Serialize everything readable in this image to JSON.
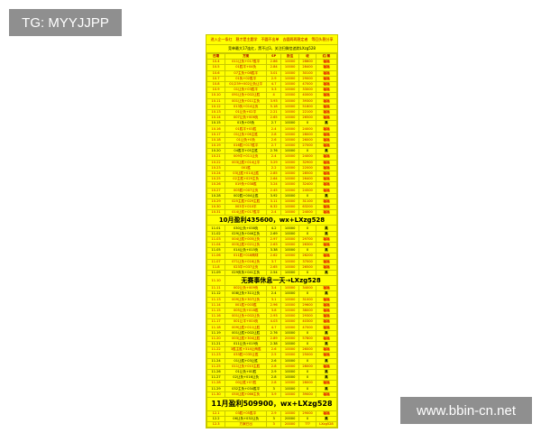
{
  "watermarks": {
    "top_left": "TG: MYYJJPP",
    "bottom_right": "www.bbin-cn.net"
  },
  "sheet": {
    "title": "进入企一条红　稳才是主题学　不圆不出单　去圆两两稳定者　等回头稳分享",
    "subtitle": "竞单最大17连红，黑不过3，关注扫微信追踪LXzg528",
    "headers": [
      "日期",
      "方案",
      "SP",
      "投注",
      "收",
      "红/黑"
    ],
    "labels": {
      "red": "福福",
      "black": "黑"
    },
    "october": [
      [
        "10.4",
        "011让负+017胜平",
        "2.86",
        "10000",
        "28600",
        "red"
      ],
      [
        "10.5",
        "01胜平+04负",
        "2.84",
        "10000",
        "28400",
        "red"
      ],
      [
        "10.6",
        "07主负+08胜平",
        "3.01",
        "10000",
        "30100",
        "red"
      ],
      [
        "10.7",
        "01负+02胜平",
        "2.9",
        "10000",
        "29000",
        "red"
      ],
      [
        "10.8",
        "01/239+002让负让平",
        "4.7",
        "10000",
        "47000",
        "red"
      ],
      [
        "10.9",
        "01让负+03胜平",
        "3.3",
        "10000",
        "33000",
        "red"
      ],
      [
        "10.10",
        "091让负+002让胜",
        "4",
        "10000",
        "40000",
        "red"
      ],
      [
        "10.11",
        "001让负+011主负",
        "3.93",
        "10000",
        "39300",
        "red"
      ],
      [
        "10.12",
        "013负+014让负",
        "5.18",
        "10000",
        "51800",
        "red"
      ],
      [
        "10.13",
        "01让负+02平",
        "2.21",
        "10000",
        "22100",
        "red"
      ],
      [
        "10.14",
        "007让负+006负",
        "2.65",
        "10000",
        "26500",
        "red"
      ],
      [
        "10.15",
        "01负+05负",
        "2.7",
        "10000",
        "0",
        "black"
      ],
      [
        "10.16",
        "01胜平+03胜",
        "2.4",
        "10000",
        "24000",
        "red"
      ],
      [
        "10.17",
        "01让负+06主胜",
        "2.8",
        "10000",
        "28000",
        "red"
      ],
      [
        "10.18",
        "01让负+0负",
        "2.6",
        "10000",
        "26000",
        "red"
      ],
      [
        "10.19",
        "016胜+017胜平",
        "2.7",
        "10000",
        "27000",
        "red"
      ],
      [
        "10.20",
        "04胜平+05主胜",
        "2.76",
        "10000",
        "0",
        "black"
      ],
      [
        "10.21",
        "009平+011让负",
        "2.4",
        "10000",
        "24000",
        "red"
      ],
      [
        "10.22",
        "003让胜+014让平",
        "3.29",
        "10000",
        "32900",
        "red"
      ],
      [
        "10.23",
        "001胜",
        "2.2",
        "10000",
        "22000",
        "red"
      ],
      [
        "10.24",
        "03让胜+014让胜",
        "2.85",
        "10000",
        "28500",
        "red"
      ],
      [
        "10.25",
        "02主胜+029主负",
        "2.64",
        "10000",
        "26400",
        "red"
      ],
      [
        "10.26",
        "019负+038胜",
        "3.24",
        "10000",
        "32400",
        "red"
      ],
      [
        "10.27",
        "005胜+007让负",
        "2.45",
        "10000",
        "24500",
        "red"
      ],
      [
        "10.28",
        "002胜+004让胜",
        "3.92",
        "10000",
        "0",
        "black"
      ],
      [
        "10.29",
        "025主胜+029主胜",
        "3.11",
        "10000",
        "31100",
        "red"
      ],
      [
        "10.30",
        "003平+010平",
        "6.32",
        "10000",
        "63200",
        "red"
      ],
      [
        "10.31",
        "014让胜+017胜平",
        "2.4",
        "10000",
        "24000",
        "red"
      ]
    ],
    "october_summary": "10月盈利435600，wx+LXzg528",
    "november_a": [
      [
        "11.01",
        "030让负+038负",
        "4.2",
        "10000",
        "0",
        "black"
      ],
      [
        "11.02",
        "029让负+046主负",
        "2.69",
        "10000",
        "0",
        "black"
      ],
      [
        "11.03",
        "004让胜+005让负",
        "2.97",
        "10000",
        "29700",
        "red"
      ],
      [
        "11.04",
        "003让胜+021让负",
        "2.63",
        "10000",
        "26300",
        "red"
      ],
      [
        "11.05",
        "014让负+015负",
        "3.38",
        "10000",
        "0",
        "black"
      ],
      [
        "11.06",
        "011胜+018两球",
        "2.62",
        "10000",
        "26200",
        "red"
      ],
      [
        "11.07",
        "071让负+016让负",
        "3.7",
        "10000",
        "37000",
        "red"
      ],
      [
        "11.8",
        "023平+037让负",
        "2.65",
        "10000",
        "26500",
        "red"
      ],
      [
        "11.09",
        "029负负+041主负",
        "2.54",
        "10000",
        "0",
        "black"
      ]
    ],
    "rest_date": "11.10",
    "rest_banner": "无赛事休息一天→LXzg528",
    "november_b": [
      [
        "11.11",
        "002让负+009负",
        "3.4",
        "10000",
        "34000",
        "red"
      ],
      [
        "11.12",
        "008让负+311让负",
        "2.4",
        "10000",
        "0",
        "black"
      ],
      [
        "11.13",
        "009让负+307让负",
        "3.1",
        "10000",
        "31000",
        "red"
      ],
      [
        "11.14",
        "001胜+003胜",
        "2.96",
        "10000",
        "29600",
        "red"
      ],
      [
        "11.15",
        "005让负+018胜",
        "3.8",
        "10000",
        "38000",
        "red"
      ],
      [
        "11.16",
        "001让负+002让负",
        "2.93",
        "10000",
        "29300",
        "red"
      ],
      [
        "11.17",
        "001让平+004负",
        "4.03",
        "10000",
        "40300",
        "red"
      ],
      [
        "11.18",
        "009让胜+011让胜",
        "4.7",
        "10000",
        "47000",
        "red"
      ],
      [
        "11.19",
        "001让胜+002让胜",
        "2.76",
        "10000",
        "0",
        "black"
      ],
      [
        "11.20",
        "003让胜+304让胜",
        "2.89",
        "20000",
        "57800",
        "red"
      ],
      [
        "11.21",
        "011让负+019负",
        "2.38",
        "10000",
        "0",
        "black"
      ],
      [
        "11.22",
        "3胜主胜+314让两胜",
        "2.6",
        "10000",
        "26000",
        "red"
      ],
      [
        "11.23",
        "033胜+035让胜",
        "2.5",
        "10000",
        "25000",
        "red"
      ],
      [
        "11.24",
        "01让胜+03让胜",
        "2.6",
        "10000",
        "0",
        "black"
      ],
      [
        "11.25",
        "011让负+015主胜",
        "2.8",
        "10000",
        "28000",
        "red"
      ],
      [
        "11.26",
        "01让负+00胜",
        "2.9",
        "10000",
        "0",
        "black"
      ],
      [
        "11.27",
        "02让负+016让负",
        "2.8",
        "10000",
        "0",
        "black"
      ],
      [
        "11.28",
        "00让胜+07胜",
        "2.8",
        "10000",
        "28000",
        "red"
      ],
      [
        "11.29",
        "032主负+034胜平",
        "3",
        "10000",
        "0",
        "black"
      ],
      [
        "11.30",
        "050让胜+066主负",
        "3.9",
        "10000",
        "39000",
        "red"
      ]
    ],
    "november_summary": "11月盈利509900，wx+LXzg528",
    "december": [
      [
        "12.1",
        "03胜+05胜平",
        "2.9",
        "10000",
        "29000",
        "red"
      ],
      [
        "12.2",
        "06让负+032让负",
        "3",
        "20000",
        "0",
        "black"
      ],
      [
        "12.3",
        "方案已出",
        "3",
        "20000",
        "???",
        "LXzg528"
      ]
    ]
  }
}
